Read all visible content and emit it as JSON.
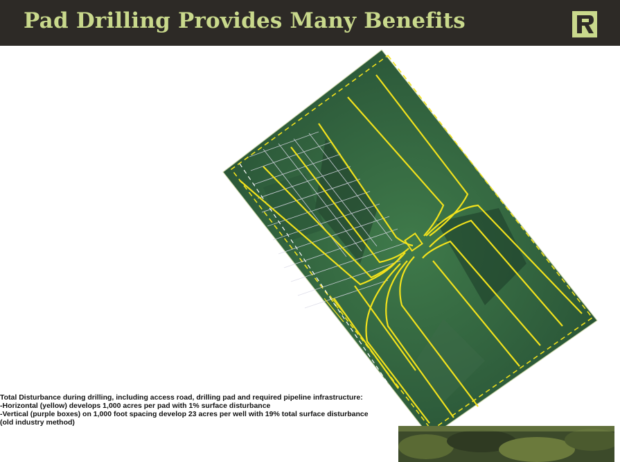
{
  "slide": {
    "title": "Pad Drilling Provides Many Benefits",
    "logo_icon": "company-r-logo-icon",
    "colors": {
      "title_bar": "#2d2a26",
      "title_text": "#c9d98c",
      "horizontal_lines": "#f2e21c",
      "vertical_grid": "#d9d9e6",
      "field_green": "#2f5e3c"
    }
  },
  "caption": {
    "line1": "Total Disturbance during drilling, including access road, drilling pad and required pipeline infrastructure:",
    "line2": "-Horizontal (yellow) develops 1,000 acres per pad with 1% surface disturbance",
    "line3": "-Vertical (purple boxes) on 1,000 foot spacing develop 23 acres per well with 19% total surface disturbance",
    "line4": "(old industry method)"
  }
}
